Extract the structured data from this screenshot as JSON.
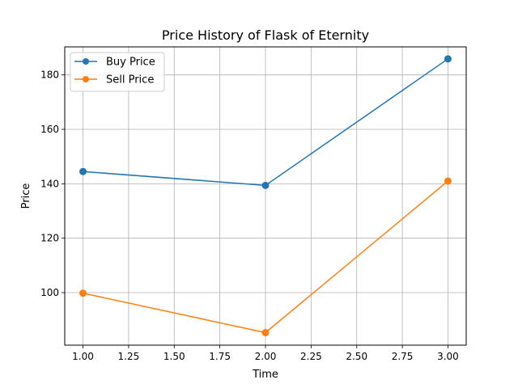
{
  "chart_data": {
    "type": "line",
    "title": "Price History of Flask of Eternity",
    "xlabel": "Time",
    "ylabel": "Price",
    "x": [
      1.0,
      2.0,
      3.0
    ],
    "xlim": [
      0.9,
      3.1
    ],
    "ylim": [
      80.7,
      190.3
    ],
    "xticks": [
      "1.00",
      "1.25",
      "1.50",
      "1.75",
      "2.00",
      "2.25",
      "2.50",
      "2.75",
      "3.00"
    ],
    "xtick_values": [
      1.0,
      1.25,
      1.5,
      1.75,
      2.0,
      2.25,
      2.5,
      2.75,
      3.0
    ],
    "yticks": [
      "100",
      "120",
      "140",
      "160",
      "180"
    ],
    "ytick_values": [
      100,
      120,
      140,
      160,
      180
    ],
    "grid": true,
    "legend_position": "top-left",
    "series": [
      {
        "name": "Buy Price",
        "values": [
          144.5,
          139.4,
          185.9
        ],
        "color": "#1f77b4",
        "marker": "circle"
      },
      {
        "name": "Sell Price",
        "values": [
          99.8,
          85.3,
          141.0
        ],
        "color": "#ff7f0e",
        "marker": "circle"
      }
    ]
  }
}
